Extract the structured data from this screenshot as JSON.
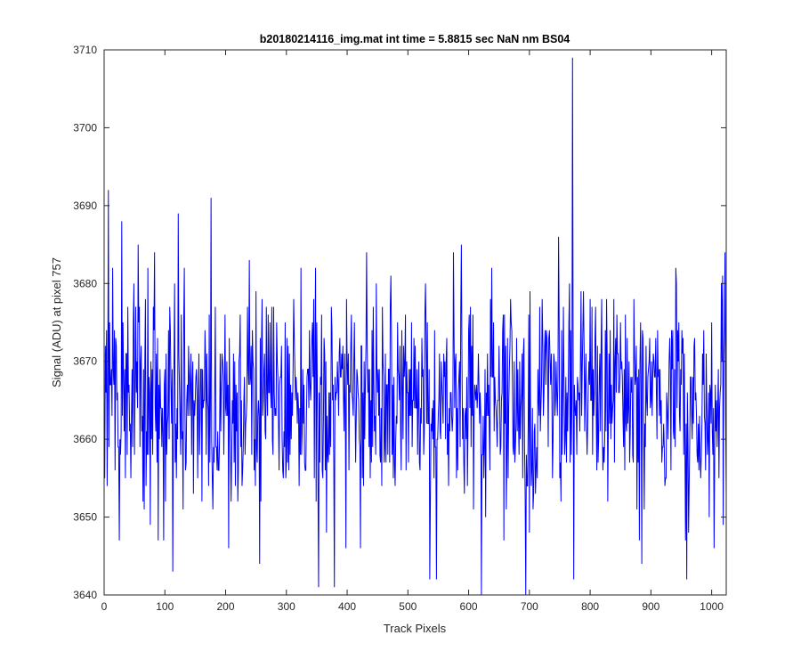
{
  "chart_data": {
    "type": "line",
    "title": "b20180214116_img.mat int time = 5.8815 sec  NaN nm BS04",
    "xlabel": "Track Pixels",
    "ylabel": "Signal (ADU) at pixel 757",
    "xlim": [
      0,
      1024
    ],
    "ylim": [
      3640,
      3710
    ],
    "xticks": [
      0,
      100,
      200,
      300,
      400,
      500,
      600,
      700,
      800,
      900,
      1000
    ],
    "yticks": [
      3640,
      3650,
      3660,
      3670,
      3680,
      3690,
      3700,
      3710
    ],
    "grid": false,
    "line_color": "#0000ff",
    "n_points": 1024,
    "baseline_mean": 3665,
    "noise_std": 7,
    "notable_points": [
      {
        "x": 1,
        "y": 3672
      },
      {
        "x": 6,
        "y": 3692
      },
      {
        "x": 28,
        "y": 3688
      },
      {
        "x": 55,
        "y": 3685
      },
      {
        "x": 71,
        "y": 3682
      },
      {
        "x": 97,
        "y": 3647
      },
      {
        "x": 121,
        "y": 3689
      },
      {
        "x": 112,
        "y": 3643
      },
      {
        "x": 175,
        "y": 3691
      },
      {
        "x": 255,
        "y": 3644
      },
      {
        "x": 352,
        "y": 3641
      },
      {
        "x": 378,
        "y": 3641
      },
      {
        "x": 431,
        "y": 3684
      },
      {
        "x": 535,
        "y": 3642
      },
      {
        "x": 574,
        "y": 3684
      },
      {
        "x": 620,
        "y": 3640
      },
      {
        "x": 693,
        "y": 3640
      },
      {
        "x": 747,
        "y": 3686
      },
      {
        "x": 770,
        "y": 3709
      },
      {
        "x": 940,
        "y": 3682
      },
      {
        "x": 958,
        "y": 3642
      },
      {
        "x": 1019,
        "y": 3670
      },
      {
        "x": 1023,
        "y": 3653
      }
    ]
  }
}
